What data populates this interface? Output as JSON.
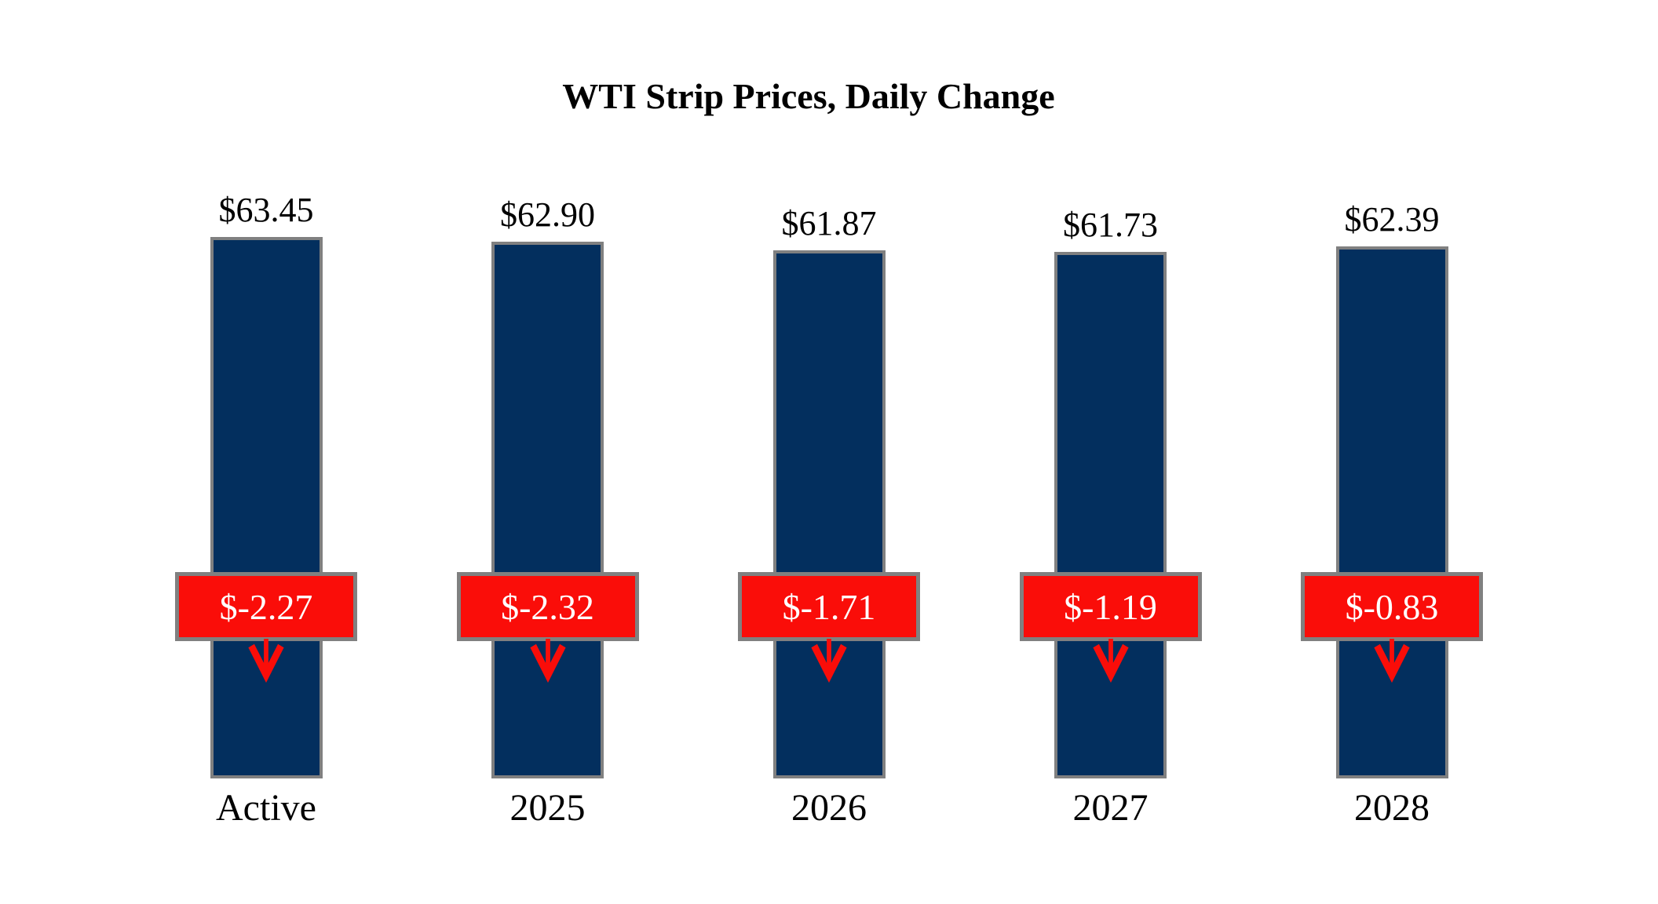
{
  "chart_data": {
    "type": "bar",
    "title": "WTI Strip Prices, Daily Change",
    "categories": [
      "Active",
      "2025",
      "2026",
      "2027",
      "2028"
    ],
    "series": [
      {
        "name": "strip_price",
        "values": [
          63.45,
          62.9,
          61.87,
          61.73,
          62.39
        ],
        "labels": [
          "$63.45",
          "$62.90",
          "$61.87",
          "$61.73",
          "$62.39"
        ]
      },
      {
        "name": "daily_change",
        "values": [
          -2.27,
          -2.32,
          -1.71,
          -1.19,
          -0.83
        ],
        "labels": [
          "$-2.27",
          "$-2.32",
          "$-1.71",
          "$-1.19",
          "$-0.83"
        ]
      }
    ],
    "ylim": [
      0,
      70
    ],
    "grid": false,
    "legend": false,
    "axes_visible": false,
    "change_direction": "down",
    "colors": {
      "bar_fill": "#032f5e",
      "bar_border": "#808080",
      "badge_fill": "#fa0d09",
      "badge_border": "#808080",
      "badge_text": "#ffffff",
      "arrow": "#fa0d09",
      "label_text": "#000000",
      "background": "#ffffff"
    }
  }
}
